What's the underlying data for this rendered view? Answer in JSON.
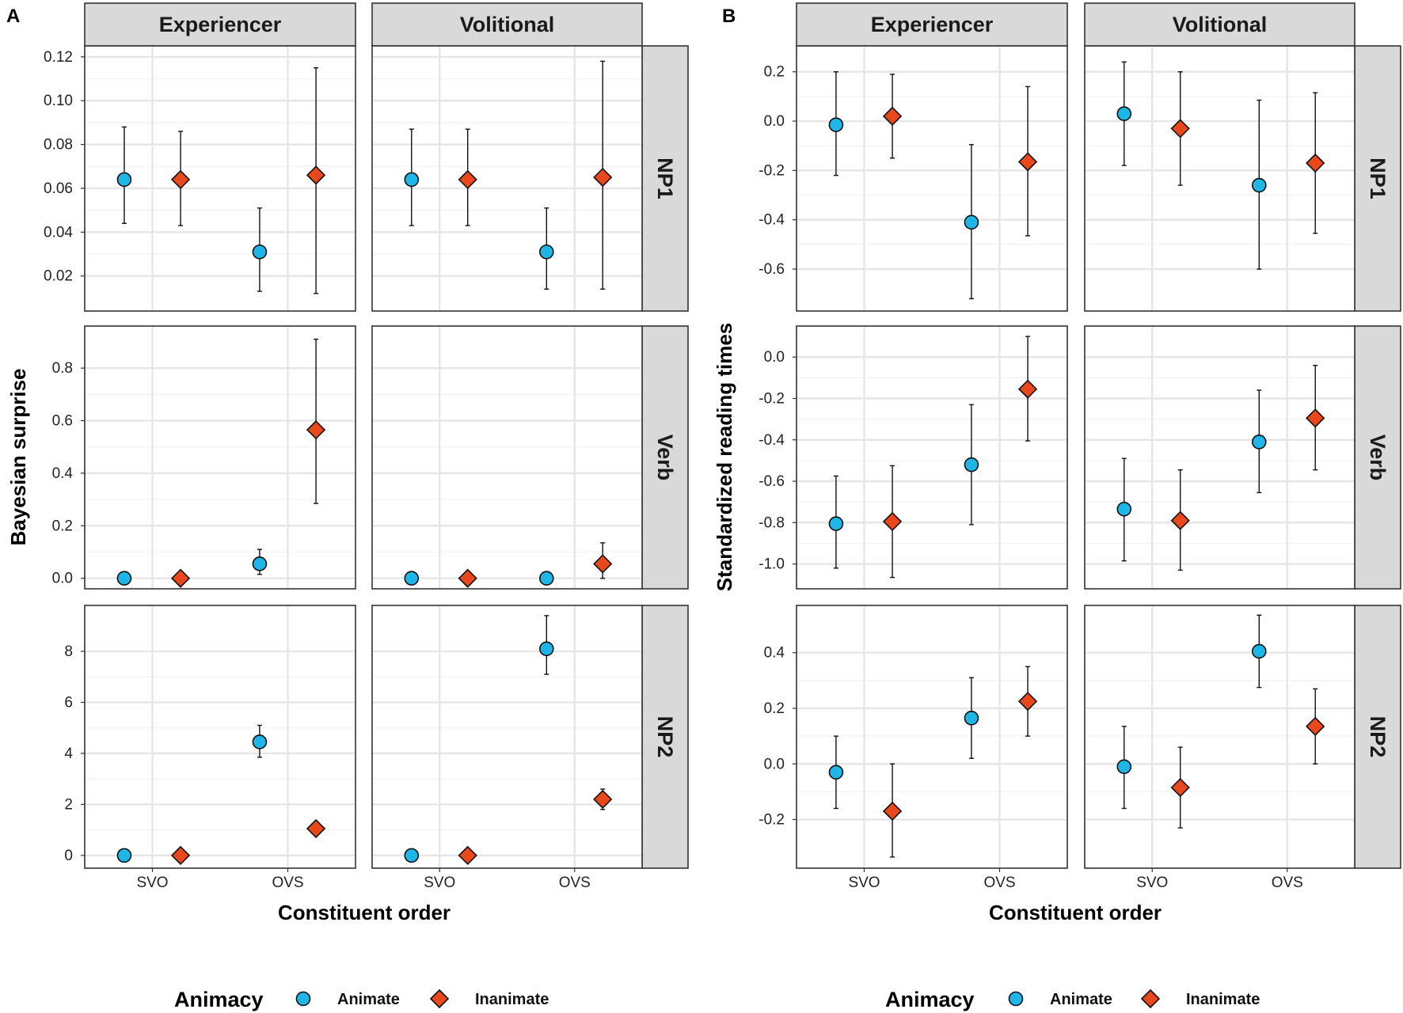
{
  "colors": {
    "animate": "#1fb5e6",
    "inanimate": "#e8481c",
    "strip": "#d9d9d9",
    "grid_major": "#e6e6e6",
    "grid_minor": "#f2f2f2"
  },
  "legend": {
    "title": "Animacy",
    "entries": [
      "Animate",
      "Inanimate"
    ]
  },
  "chart_data": [
    {
      "panel": "A",
      "type": "scatter",
      "ylabel": "Bayesian surprise",
      "xlabel": "Constituent order",
      "categories": [
        "SVO",
        "OVS"
      ],
      "columns": [
        "Experiencer",
        "Volitional"
      ],
      "rows": [
        {
          "name": "NP1",
          "ylim": [
            0.004,
            0.125
          ],
          "ticks": [
            0.02,
            0.04,
            0.06,
            0.08,
            0.1,
            0.12
          ],
          "tick_labels": [
            "0.02",
            "0.04",
            "0.06",
            "0.08",
            "0.10",
            "0.12"
          ],
          "cells": [
            {
              "column": "Experiencer",
              "series": [
                {
                  "name": "Animate",
                  "values": [
                    0.064,
                    0.031
                  ],
                  "lower": [
                    0.044,
                    0.013
                  ],
                  "upper": [
                    0.088,
                    0.051
                  ]
                },
                {
                  "name": "Inanimate",
                  "values": [
                    0.064,
                    0.066
                  ],
                  "lower": [
                    0.043,
                    0.012
                  ],
                  "upper": [
                    0.086,
                    0.115
                  ]
                }
              ]
            },
            {
              "column": "Volitional",
              "series": [
                {
                  "name": "Animate",
                  "values": [
                    0.064,
                    0.031
                  ],
                  "lower": [
                    0.043,
                    0.014
                  ],
                  "upper": [
                    0.087,
                    0.051
                  ]
                },
                {
                  "name": "Inanimate",
                  "values": [
                    0.064,
                    0.065
                  ],
                  "lower": [
                    0.043,
                    0.014
                  ],
                  "upper": [
                    0.087,
                    0.118
                  ]
                }
              ]
            }
          ]
        },
        {
          "name": "Verb",
          "ylim": [
            -0.04,
            0.96
          ],
          "ticks": [
            0.0,
            0.2,
            0.4,
            0.6,
            0.8
          ],
          "tick_labels": [
            "0.0",
            "0.2",
            "0.4",
            "0.6",
            "0.8"
          ],
          "cells": [
            {
              "column": "Experiencer",
              "series": [
                {
                  "name": "Animate",
                  "values": [
                    0.0,
                    0.055
                  ],
                  "lower": [
                    -0.01,
                    0.015
                  ],
                  "upper": [
                    0.01,
                    0.11
                  ]
                },
                {
                  "name": "Inanimate",
                  "values": [
                    0.0,
                    0.565
                  ],
                  "lower": [
                    -0.01,
                    0.285
                  ],
                  "upper": [
                    0.01,
                    0.91
                  ]
                }
              ]
            },
            {
              "column": "Volitional",
              "series": [
                {
                  "name": "Animate",
                  "values": [
                    0.0,
                    0.0
                  ],
                  "lower": [
                    -0.01,
                    -0.01
                  ],
                  "upper": [
                    0.01,
                    0.01
                  ]
                },
                {
                  "name": "Inanimate",
                  "values": [
                    0.0,
                    0.055
                  ],
                  "lower": [
                    -0.01,
                    0.0
                  ],
                  "upper": [
                    0.01,
                    0.135
                  ]
                }
              ]
            }
          ]
        },
        {
          "name": "NP2",
          "ylim": [
            -0.5,
            9.8
          ],
          "ticks": [
            0,
            2,
            4,
            6,
            8
          ],
          "tick_labels": [
            "0",
            "2",
            "4",
            "6",
            "8"
          ],
          "cells": [
            {
              "column": "Experiencer",
              "series": [
                {
                  "name": "Animate",
                  "values": [
                    0.0,
                    4.45
                  ],
                  "lower": [
                    -0.08,
                    3.85
                  ],
                  "upper": [
                    0.08,
                    5.1
                  ]
                },
                {
                  "name": "Inanimate",
                  "values": [
                    0.0,
                    1.05
                  ],
                  "lower": [
                    -0.08,
                    0.9
                  ],
                  "upper": [
                    0.08,
                    1.2
                  ]
                }
              ]
            },
            {
              "column": "Volitional",
              "series": [
                {
                  "name": "Animate",
                  "values": [
                    0.0,
                    8.1
                  ],
                  "lower": [
                    -0.08,
                    7.1
                  ],
                  "upper": [
                    0.08,
                    9.4
                  ]
                },
                {
                  "name": "Inanimate",
                  "values": [
                    0.0,
                    2.2
                  ],
                  "lower": [
                    -0.08,
                    1.8
                  ],
                  "upper": [
                    0.08,
                    2.6
                  ]
                }
              ]
            }
          ]
        }
      ]
    },
    {
      "panel": "B",
      "type": "scatter",
      "ylabel": "Standardized reading times",
      "xlabel": "Constituent order",
      "categories": [
        "SVO",
        "OVS"
      ],
      "columns": [
        "Experiencer",
        "Volitional"
      ],
      "rows": [
        {
          "name": "NP1",
          "ylim": [
            -0.77,
            0.305
          ],
          "ticks": [
            0.2,
            0.0,
            -0.2,
            -0.4,
            -0.6
          ],
          "tick_labels": [
            "0.2",
            "0.0",
            "-0.2",
            "-0.4",
            "-0.6"
          ],
          "cells": [
            {
              "column": "Experiencer",
              "series": [
                {
                  "name": "Animate",
                  "values": [
                    -0.015,
                    -0.41
                  ],
                  "lower": [
                    -0.22,
                    -0.72
                  ],
                  "upper": [
                    0.2,
                    -0.095
                  ]
                },
                {
                  "name": "Inanimate",
                  "values": [
                    0.02,
                    -0.165
                  ],
                  "lower": [
                    -0.15,
                    -0.465
                  ],
                  "upper": [
                    0.19,
                    0.14
                  ]
                }
              ]
            },
            {
              "column": "Volitional",
              "series": [
                {
                  "name": "Animate",
                  "values": [
                    0.03,
                    -0.26
                  ],
                  "lower": [
                    -0.18,
                    -0.6
                  ],
                  "upper": [
                    0.24,
                    0.085
                  ]
                },
                {
                  "name": "Inanimate",
                  "values": [
                    -0.03,
                    -0.17
                  ],
                  "lower": [
                    -0.26,
                    -0.455
                  ],
                  "upper": [
                    0.2,
                    0.115
                  ]
                }
              ]
            }
          ]
        },
        {
          "name": "Verb",
          "ylim": [
            -1.12,
            0.15
          ],
          "ticks": [
            0.0,
            -0.2,
            -0.4,
            -0.6,
            -0.8,
            -1.0
          ],
          "tick_labels": [
            "0.0",
            "-0.2",
            "-0.4",
            "-0.6",
            "-0.8",
            "-1.0"
          ],
          "cells": [
            {
              "column": "Experiencer",
              "series": [
                {
                  "name": "Animate",
                  "values": [
                    -0.805,
                    -0.52
                  ],
                  "lower": [
                    -1.02,
                    -0.81
                  ],
                  "upper": [
                    -0.575,
                    -0.23
                  ]
                },
                {
                  "name": "Inanimate",
                  "values": [
                    -0.795,
                    -0.155
                  ],
                  "lower": [
                    -1.065,
                    -0.405
                  ],
                  "upper": [
                    -0.525,
                    0.1
                  ]
                }
              ]
            },
            {
              "column": "Volitional",
              "series": [
                {
                  "name": "Animate",
                  "values": [
                    -0.735,
                    -0.41
                  ],
                  "lower": [
                    -0.985,
                    -0.655
                  ],
                  "upper": [
                    -0.49,
                    -0.16
                  ]
                },
                {
                  "name": "Inanimate",
                  "values": [
                    -0.79,
                    -0.295
                  ],
                  "lower": [
                    -1.03,
                    -0.545
                  ],
                  "upper": [
                    -0.545,
                    -0.04
                  ]
                }
              ]
            }
          ]
        },
        {
          "name": "NP2",
          "ylim": [
            -0.375,
            0.57
          ],
          "ticks": [
            0.4,
            0.2,
            0.0,
            -0.2
          ],
          "tick_labels": [
            "0.4",
            "0.2",
            "0.0",
            "-0.2"
          ],
          "cells": [
            {
              "column": "Experiencer",
              "series": [
                {
                  "name": "Animate",
                  "values": [
                    -0.03,
                    0.165
                  ],
                  "lower": [
                    -0.16,
                    0.02
                  ],
                  "upper": [
                    0.1,
                    0.31
                  ]
                },
                {
                  "name": "Inanimate",
                  "values": [
                    -0.17,
                    0.225
                  ],
                  "lower": [
                    -0.335,
                    0.1
                  ],
                  "upper": [
                    0.0,
                    0.35
                  ]
                }
              ]
            },
            {
              "column": "Volitional",
              "series": [
                {
                  "name": "Animate",
                  "values": [
                    -0.01,
                    0.405
                  ],
                  "lower": [
                    -0.16,
                    0.275
                  ],
                  "upper": [
                    0.135,
                    0.535
                  ]
                },
                {
                  "name": "Inanimate",
                  "values": [
                    -0.085,
                    0.135
                  ],
                  "lower": [
                    -0.23,
                    0.0
                  ],
                  "upper": [
                    0.06,
                    0.27
                  ]
                }
              ]
            }
          ]
        }
      ]
    }
  ]
}
